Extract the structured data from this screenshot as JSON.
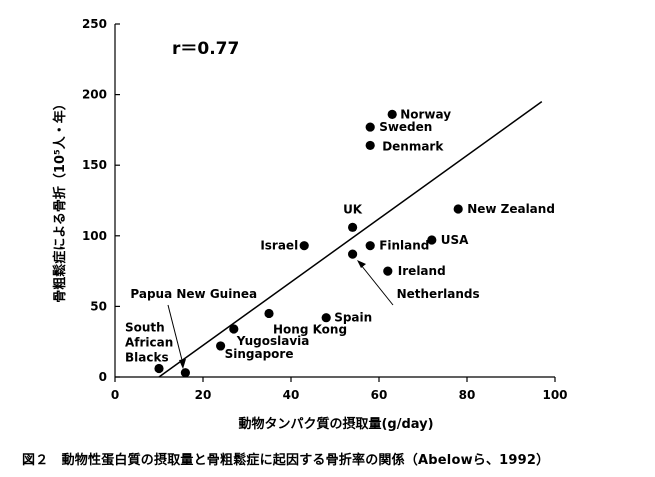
{
  "caption": "図２　動物性蛋白質の摂取量と骨粗鬆症に起因する骨折率の関係（Abelowら、1992）",
  "chart_data": {
    "type": "scatter",
    "title": "",
    "xlabel": "動物タンパク質の摂取量(g/day)",
    "ylabel": "骨粗鬆症による骨折（10⁵人・年）",
    "xlim": [
      0,
      100
    ],
    "ylim": [
      0,
      250
    ],
    "x_ticks": [
      "0",
      "20",
      "40",
      "60",
      "80",
      "100"
    ],
    "y_ticks": [
      "0",
      "50",
      "100",
      "150",
      "200",
      "250"
    ],
    "grid": false,
    "annotation": "r＝0.77",
    "trendline": {
      "x": [
        10,
        97
      ],
      "y": [
        0,
        195
      ]
    },
    "points": [
      {
        "label": "Norway",
        "x": 63,
        "y": 186
      },
      {
        "label": "Sweden",
        "x": 58,
        "y": 177
      },
      {
        "label": "Denmark",
        "x": 58,
        "y": 164
      },
      {
        "label": "New Zealand",
        "x": 78,
        "y": 119
      },
      {
        "label": "UK",
        "x": 54,
        "y": 106
      },
      {
        "label": "Israel",
        "x": 43,
        "y": 93
      },
      {
        "label": "Finland",
        "x": 58,
        "y": 93
      },
      {
        "label": "USA",
        "x": 72,
        "y": 97
      },
      {
        "label": "Netherlands",
        "x": 54,
        "y": 87
      },
      {
        "label": "Ireland",
        "x": 62,
        "y": 75
      },
      {
        "label": "Spain",
        "x": 48,
        "y": 42
      },
      {
        "label": "Hong Kong",
        "x": 35,
        "y": 45
      },
      {
        "label": "Yugoslavia",
        "x": 27,
        "y": 34
      },
      {
        "label": "Singapore",
        "x": 24,
        "y": 22
      },
      {
        "label": "South African Blacks",
        "x": 10,
        "y": 6
      },
      {
        "label": "Papua New Guinea",
        "x": 16,
        "y": 3
      }
    ]
  }
}
